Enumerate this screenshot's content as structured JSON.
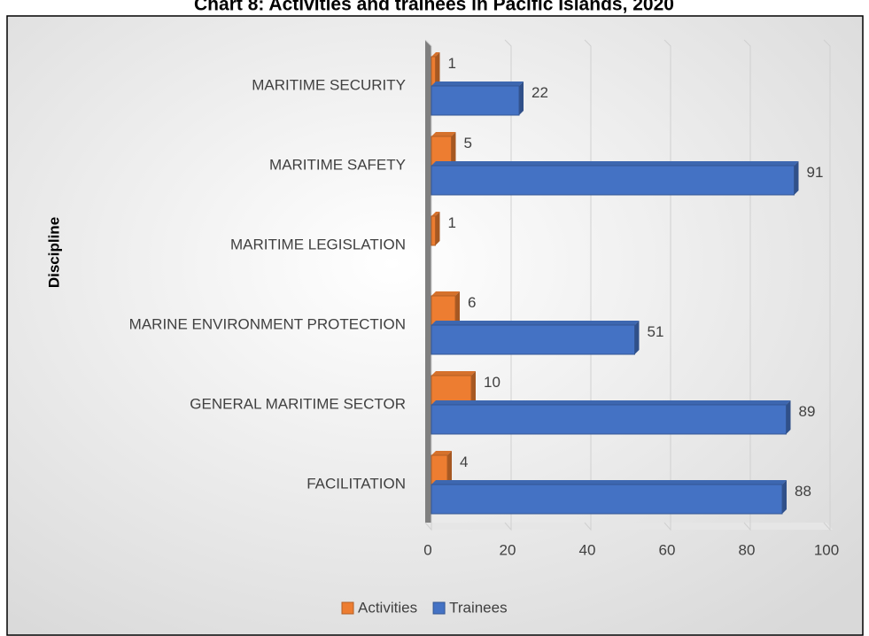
{
  "chart_data": {
    "type": "bar",
    "orientation": "horizontal",
    "title": "Chart 8: Activities and trainees in Pacific Islands, 2020",
    "y_label": "Discipline",
    "categories": [
      "MARITIME SECURITY",
      "MARITIME SAFETY",
      "MARITIME LEGISLATION",
      "MARINE ENVIRONMENT PROTECTION",
      "GENERAL MARITIME SECTOR",
      "FACILITATION"
    ],
    "series": [
      {
        "name": "Activities",
        "color": "#ed7d31",
        "values": [
          1,
          5,
          1,
          6,
          10,
          4
        ]
      },
      {
        "name": "Trainees",
        "color": "#4472c4",
        "values": [
          22,
          91,
          null,
          51,
          89,
          88
        ]
      }
    ],
    "xlim": [
      0,
      100
    ],
    "xticks": [
      0,
      20,
      40,
      60,
      80,
      100
    ],
    "grid": true,
    "legend": "bottom"
  }
}
